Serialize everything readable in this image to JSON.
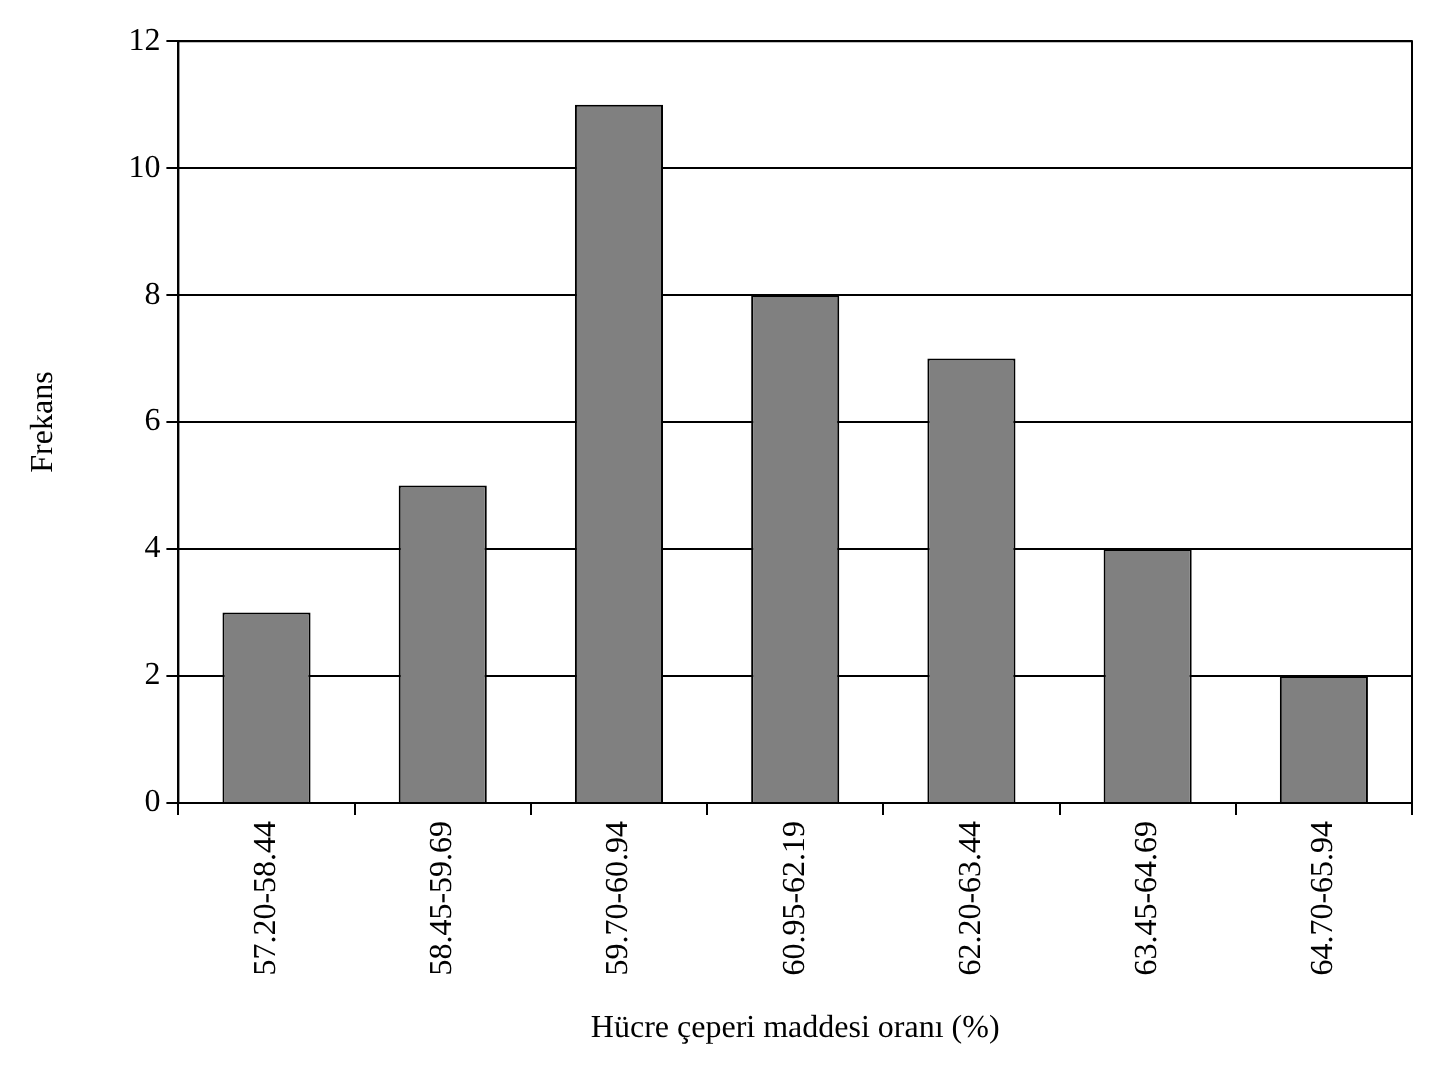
{
  "chart_data": {
    "type": "bar",
    "xlabel": "Hücre çeperi maddesi oranı (%)",
    "ylabel": "Frekans",
    "categories": [
      "57.20-58.44",
      "58.45-59.69",
      "59.70-60.94",
      "60.95-62.19",
      "62.20-63.44",
      "63.45-64.69",
      "64.70-65.94"
    ],
    "values": [
      3,
      5,
      11,
      8,
      7,
      4,
      2
    ],
    "color": "#808080",
    "ylim": [
      0,
      12
    ],
    "yticks": [
      0,
      2,
      4,
      6,
      8,
      10,
      12
    ],
    "grid": "y",
    "legend": false
  }
}
